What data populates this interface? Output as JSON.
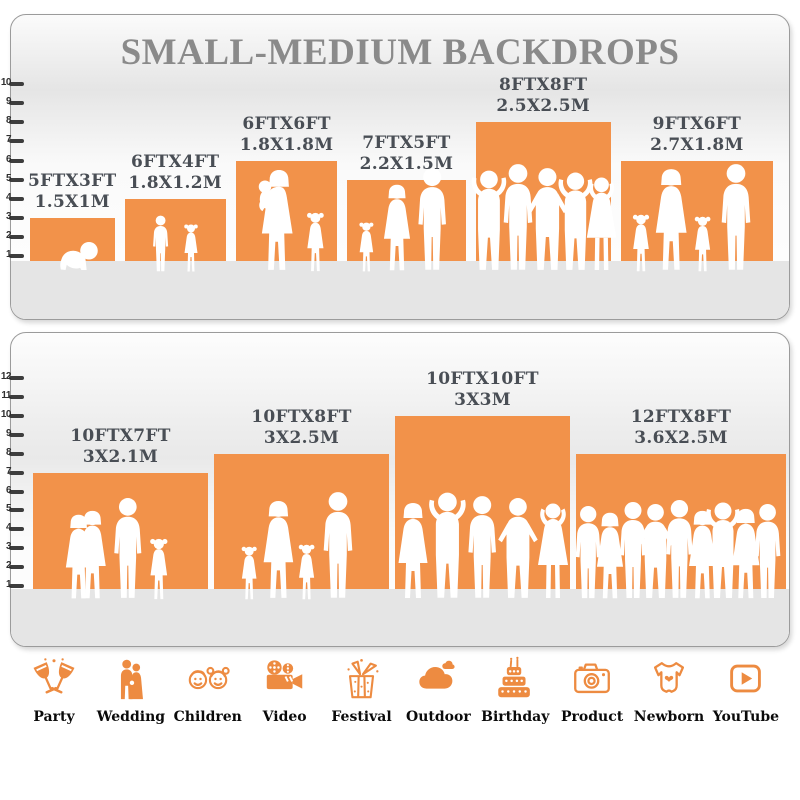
{
  "title": "SMALL-MEDIUM BACKDROPS",
  "colors": {
    "bar_orange": "#F2924A",
    "icon_orange": "#ED8B41",
    "title_gray": "#8A8A8A",
    "label_dark": "#494E55"
  },
  "chart_data": [
    {
      "type": "bar",
      "title": "SMALL-MEDIUM BACKDROPS",
      "xlabel": "",
      "ylabel": "",
      "axis_ticks": [
        1,
        2,
        3,
        4,
        5,
        6,
        7,
        8,
        9,
        10
      ],
      "ylim": [
        0,
        10
      ],
      "categories": [
        "5FTX3FT 1.5X1M",
        "6FTX4FT 1.8X1.2M",
        "6FTX6FT 1.8X1.8M",
        "7FTX5FT 2.2X1.5M",
        "8FTX8FT 2.5X2.5M",
        "9FTX6FT 2.7X1.8M"
      ],
      "values": [
        3,
        4,
        6,
        5,
        8,
        6
      ],
      "bar_widths_ft": [
        5,
        6,
        6,
        7,
        8,
        9
      ],
      "grid": false,
      "legend": false
    },
    {
      "type": "bar",
      "title": "",
      "xlabel": "",
      "ylabel": "",
      "axis_ticks": [
        1,
        2,
        3,
        4,
        5,
        6,
        7,
        8,
        9,
        10,
        11,
        12
      ],
      "ylim": [
        0,
        12
      ],
      "categories": [
        "10FTX7FT 3X2.1M",
        "10FTX8FT 3X2.5M",
        "10FTX10FT 3X3M",
        "12FTX8FT 3.6X2.5M"
      ],
      "values": [
        7,
        8,
        10,
        8
      ],
      "bar_widths_ft": [
        10,
        10,
        10,
        12
      ],
      "grid": false,
      "legend": false
    }
  ],
  "panels": [
    {
      "ruler_ticks": [
        1,
        2,
        3,
        4,
        5,
        6,
        7,
        8,
        9,
        10
      ],
      "bars": [
        {
          "line1": "5FTX3FT",
          "line2": "1.5X1M",
          "width_ft": 5,
          "height_ft": 3,
          "figures": [
            [
              "baby",
              34,
              0.52
            ]
          ]
        },
        {
          "line1": "6FTX4FT",
          "line2": "1.8X1.2M",
          "width_ft": 6,
          "height_ft": 4,
          "figures": [
            [
              "boy",
              58,
              0.36
            ],
            [
              "girl",
              50,
              0.66
            ]
          ]
        },
        {
          "line1": "6FTX6FT",
          "line2": "1.8X1.8M",
          "width_ft": 6,
          "height_ft": 6,
          "figures": [
            [
              "woman-baby",
              104,
              0.4
            ],
            [
              "girl",
              62,
              0.78
            ]
          ]
        },
        {
          "line1": "7FTX5FT",
          "line2": "2.2X1.5M",
          "width_ft": 7,
          "height_ft": 5,
          "figures": [
            [
              "girl",
              52,
              0.16
            ],
            [
              "woman",
              90,
              0.42
            ],
            [
              "man",
              106,
              0.72
            ]
          ]
        },
        {
          "line1": "8FTX8FT",
          "line2": "2.5X2.5M",
          "width_ft": 8,
          "height_ft": 8,
          "figures": [
            [
              "man-up",
              104,
              0.1
            ],
            [
              "man",
              110,
              0.31
            ],
            [
              "man-hips",
              106,
              0.53
            ],
            [
              "man-up",
              102,
              0.74
            ],
            [
              "woman-up",
              98,
              0.93
            ]
          ]
        },
        {
          "line1": "9FTX6FT",
          "line2": "2.7X1.8M",
          "width_ft": 9,
          "height_ft": 6,
          "figures": [
            [
              "girl",
              60,
              0.13
            ],
            [
              "woman",
              106,
              0.33
            ],
            [
              "girl",
              58,
              0.54
            ],
            [
              "man",
              110,
              0.76
            ]
          ]
        }
      ]
    },
    {
      "ruler_ticks": [
        1,
        2,
        3,
        4,
        5,
        6,
        7,
        8,
        9,
        10,
        11,
        12
      ],
      "bars": [
        {
          "line1": "10FTX7FT",
          "line2": "3X2.1M",
          "width_ft": 10,
          "height_ft": 7,
          "figures": [
            [
              "woman",
              88,
              0.26
            ],
            [
              "woman",
              92,
              0.34
            ],
            [
              "man",
              104,
              0.54
            ],
            [
              "girl",
              64,
              0.72
            ]
          ]
        },
        {
          "line1": "10FTX8FT",
          "line2": "3X2.5M",
          "width_ft": 10,
          "height_ft": 8,
          "figures": [
            [
              "girl",
              56,
              0.2
            ],
            [
              "woman",
              102,
              0.37
            ],
            [
              "girl",
              58,
              0.53
            ],
            [
              "man",
              110,
              0.71
            ]
          ]
        },
        {
          "line1": "10FTX10FT",
          "line2": "3X3M",
          "width_ft": 10,
          "height_ft": 10,
          "figures": [
            [
              "woman",
              100,
              0.1
            ],
            [
              "man-up",
              110,
              0.3
            ],
            [
              "man",
              106,
              0.5
            ],
            [
              "man-hips",
              104,
              0.7
            ],
            [
              "woman-up",
              100,
              0.9
            ]
          ]
        },
        {
          "line1": "12FTX8FT",
          "line2": "3.6X2.5M",
          "width_ft": 12,
          "height_ft": 8,
          "figures": [
            [
              "man",
              96,
              0.06
            ],
            [
              "woman",
              90,
              0.16
            ],
            [
              "man",
              100,
              0.27
            ],
            [
              "man-hips",
              98,
              0.38
            ],
            [
              "man",
              102,
              0.49
            ],
            [
              "woman",
              92,
              0.6
            ],
            [
              "man-up",
              100,
              0.7
            ],
            [
              "woman",
              94,
              0.81
            ],
            [
              "man",
              98,
              0.91
            ]
          ]
        }
      ]
    }
  ],
  "footer_categories": [
    {
      "id": "party",
      "label": "Party"
    },
    {
      "id": "wedding",
      "label": "Wedding"
    },
    {
      "id": "children",
      "label": "Children"
    },
    {
      "id": "video",
      "label": "Video"
    },
    {
      "id": "festival",
      "label": "Festival"
    },
    {
      "id": "outdoor",
      "label": "Outdoor"
    },
    {
      "id": "birthday",
      "label": "Birthday"
    },
    {
      "id": "product",
      "label": "Product"
    },
    {
      "id": "newborn",
      "label": "Newborn"
    },
    {
      "id": "youtube",
      "label": "YouTube"
    }
  ]
}
